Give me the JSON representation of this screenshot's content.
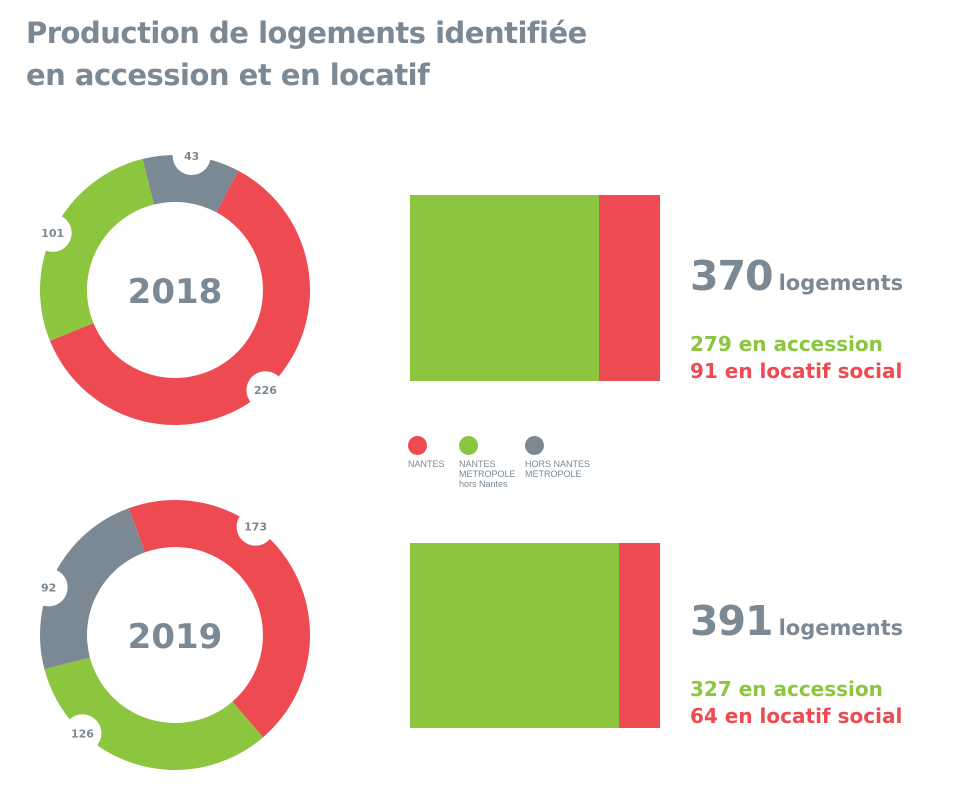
{
  "title": {
    "line1": "Production de logements identifiée",
    "line2": "en accession et en locatif"
  },
  "colors": {
    "red": "#ee4a51",
    "green": "#8cc63f",
    "grey": "#7b8994",
    "white": "#ffffff"
  },
  "legend": [
    {
      "label_lines": [
        "NANTES"
      ],
      "color": "#ee4a51"
    },
    {
      "label_lines": [
        "NANTES",
        "METROPOLE",
        "hors Nantes"
      ],
      "color": "#8cc63f"
    },
    {
      "label_lines": [
        "HORS NANTES",
        "METROPOLE"
      ],
      "color": "#7b8994"
    }
  ],
  "chart_data": [
    {
      "type": "pie",
      "variant": "donut",
      "title": "2018",
      "categories": [
        "NANTES",
        "NANTES METROPOLE hors Nantes",
        "HORS NANTES METROPOLE"
      ],
      "values": [
        226,
        101,
        43
      ],
      "labels": [
        "226",
        "101",
        "43"
      ]
    },
    {
      "type": "bar",
      "variant": "stacked-horizontal",
      "title": "2018",
      "categories": [
        "en accession",
        "en locatif social"
      ],
      "values": [
        279,
        91
      ],
      "total": 370,
      "total_label": "370",
      "unit": "logements",
      "lines": [
        "279 en accession",
        "91 en locatif social"
      ]
    },
    {
      "type": "pie",
      "variant": "donut",
      "title": "2019",
      "categories": [
        "NANTES",
        "NANTES METROPOLE hors Nantes",
        "HORS NANTES METROPOLE"
      ],
      "values": [
        173,
        126,
        92
      ],
      "labels": [
        "173",
        "126",
        "92"
      ]
    },
    {
      "type": "bar",
      "variant": "stacked-horizontal",
      "title": "2019",
      "categories": [
        "en accession",
        "en locatif social"
      ],
      "values": [
        327,
        64
      ],
      "total": 391,
      "total_label": "391",
      "unit": "logements",
      "lines": [
        "327 en accession",
        "64 en locatif social"
      ]
    }
  ]
}
